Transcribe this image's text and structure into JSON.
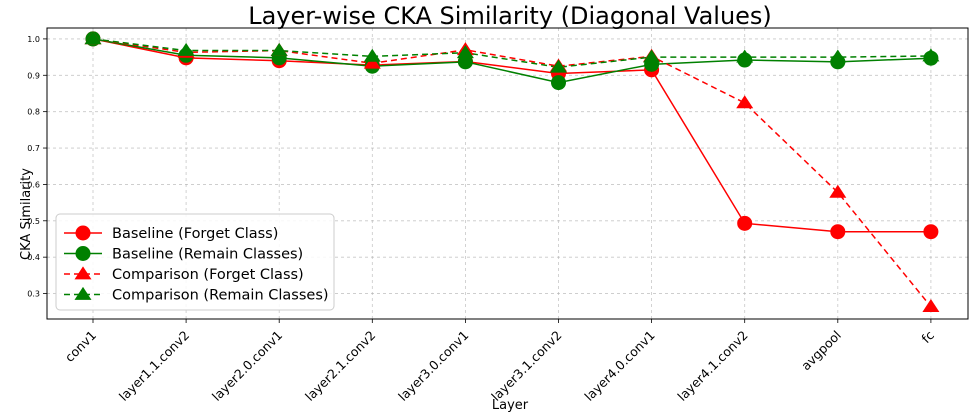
{
  "chart_data": {
    "type": "line",
    "title": "Layer-wise CKA Similarity (Diagonal Values)",
    "xlabel": "Layer",
    "ylabel": "CKA Similarity",
    "categories": [
      "conv1",
      "layer1.1.conv2",
      "layer2.0.conv1",
      "layer2.1.conv2",
      "layer3.0.conv1",
      "layer3.1.conv2",
      "layer4.0.conv1",
      "layer4.1.conv2",
      "avgpool",
      "fc"
    ],
    "ylim": [
      0.23,
      1.03
    ],
    "yticks": [
      "0.3",
      "0.4",
      "0.5",
      "0.6",
      "0.7",
      "0.8",
      "0.9",
      "1.0"
    ],
    "grid": true,
    "legend_position": "lower-left",
    "series": [
      {
        "name": "Baseline (Forget Class)",
        "color": "#ff0000",
        "linestyle": "solid",
        "marker": "circle",
        "values": [
          1.0,
          0.948,
          0.94,
          0.928,
          0.938,
          0.905,
          0.915,
          0.493,
          0.47,
          0.47
        ]
      },
      {
        "name": "Baseline (Remain Classes)",
        "color": "#008000",
        "linestyle": "solid",
        "marker": "circle",
        "values": [
          1.0,
          0.955,
          0.948,
          0.925,
          0.937,
          0.88,
          0.93,
          0.942,
          0.937,
          0.947
        ]
      },
      {
        "name": "Comparison (Forget Class)",
        "color": "#ff0000",
        "linestyle": "dashed",
        "marker": "triangle",
        "values": [
          1.0,
          0.963,
          0.968,
          0.933,
          0.97,
          0.925,
          0.952,
          0.824,
          0.578,
          0.264
        ]
      },
      {
        "name": "Comparison (Remain Classes)",
        "color": "#008000",
        "linestyle": "dashed",
        "marker": "triangle",
        "values": [
          1.0,
          0.968,
          0.968,
          0.952,
          0.962,
          0.922,
          0.95,
          0.95,
          0.95,
          0.953
        ]
      }
    ]
  }
}
